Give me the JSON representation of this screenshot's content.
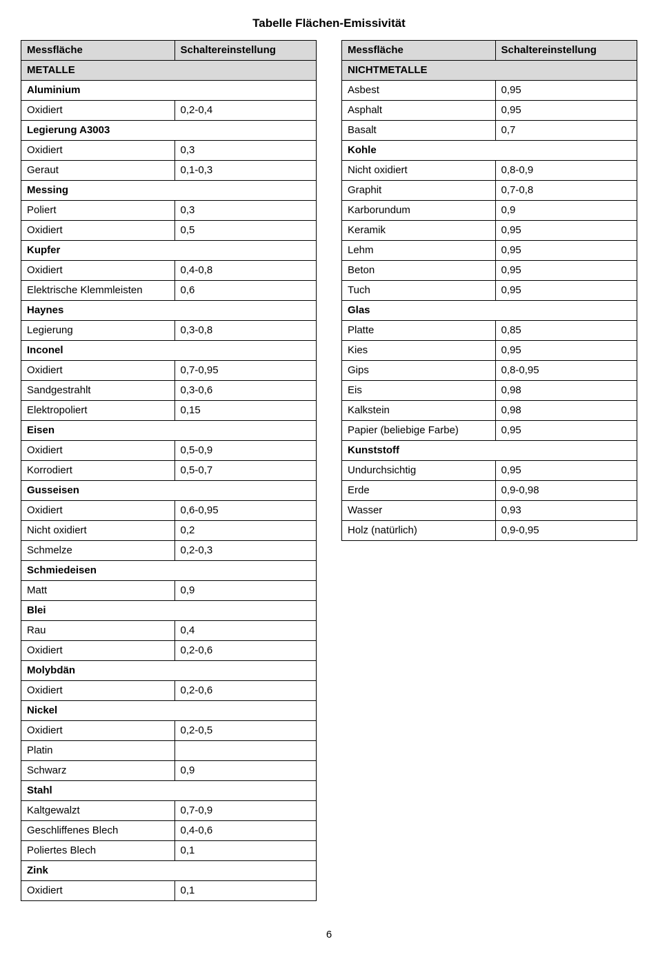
{
  "title": "Tabelle Flächen-Emissivität",
  "page_number": "6",
  "headers": {
    "surface": "Messfläche",
    "setting": "Schaltereinstellung"
  },
  "left_rows": [
    {
      "type": "section_gray",
      "label": "METALLE"
    },
    {
      "type": "section",
      "label": "Aluminium"
    },
    {
      "type": "data",
      "surface": "Oxidiert",
      "setting": "0,2-0,4"
    },
    {
      "type": "section",
      "label": "Legierung A3003"
    },
    {
      "type": "data",
      "surface": "Oxidiert",
      "setting": "0,3"
    },
    {
      "type": "data",
      "surface": "Geraut",
      "setting": "0,1-0,3"
    },
    {
      "type": "section",
      "label": "Messing"
    },
    {
      "type": "data",
      "surface": "Poliert",
      "setting": "0,3"
    },
    {
      "type": "data",
      "surface": "Oxidiert",
      "setting": "0,5"
    },
    {
      "type": "section",
      "label": "Kupfer"
    },
    {
      "type": "data",
      "surface": "Oxidiert",
      "setting": "0,4-0,8"
    },
    {
      "type": "data",
      "surface": "Elektrische Klemmleisten",
      "setting": "0,6"
    },
    {
      "type": "section",
      "label": "Haynes"
    },
    {
      "type": "data",
      "surface": "Legierung",
      "setting": "0,3-0,8"
    },
    {
      "type": "section",
      "label": "Inconel"
    },
    {
      "type": "data",
      "surface": "Oxidiert",
      "setting": "0,7-0,95"
    },
    {
      "type": "data",
      "surface": "Sandgestrahlt",
      "setting": "0,3-0,6"
    },
    {
      "type": "data",
      "surface": "Elektropoliert",
      "setting": "0,15"
    },
    {
      "type": "section",
      "label": "Eisen"
    },
    {
      "type": "data",
      "surface": "Oxidiert",
      "setting": "0,5-0,9"
    },
    {
      "type": "data",
      "surface": "Korrodiert",
      "setting": "0,5-0,7"
    },
    {
      "type": "section",
      "label": "Gusseisen"
    },
    {
      "type": "data",
      "surface": "Oxidiert",
      "setting": "0,6-0,95"
    },
    {
      "type": "data",
      "surface": "Nicht oxidiert",
      "setting": "0,2"
    },
    {
      "type": "data",
      "surface": "Schmelze",
      "setting": "0,2-0,3"
    },
    {
      "type": "section",
      "label": "Schmiedeisen"
    },
    {
      "type": "data",
      "surface": "Matt",
      "setting": "0,9"
    },
    {
      "type": "section",
      "label": "Blei"
    },
    {
      "type": "data",
      "surface": "Rau",
      "setting": "0,4"
    },
    {
      "type": "data",
      "surface": "Oxidiert",
      "setting": "0,2-0,6"
    },
    {
      "type": "section",
      "label": "Molybdän"
    },
    {
      "type": "data",
      "surface": "Oxidiert",
      "setting": "0,2-0,6"
    },
    {
      "type": "section",
      "label": "Nickel"
    },
    {
      "type": "data",
      "surface": "Oxidiert",
      "setting": "0,2-0,5"
    },
    {
      "type": "data",
      "surface": "Platin",
      "setting": ""
    },
    {
      "type": "data",
      "surface": "Schwarz",
      "setting": "0,9"
    },
    {
      "type": "section",
      "label": "Stahl"
    },
    {
      "type": "data",
      "surface": "Kaltgewalzt",
      "setting": "0,7-0,9"
    },
    {
      "type": "data",
      "surface": "Geschliffenes Blech",
      "setting": "0,4-0,6"
    },
    {
      "type": "data",
      "surface": "Poliertes Blech",
      "setting": "0,1"
    },
    {
      "type": "section",
      "label": "Zink"
    },
    {
      "type": "data",
      "surface": "Oxidiert",
      "setting": "0,1"
    }
  ],
  "right_rows": [
    {
      "type": "section_gray",
      "label": "NICHTMETALLE"
    },
    {
      "type": "data",
      "surface": "Asbest",
      "setting": "0,95"
    },
    {
      "type": "data",
      "surface": "Asphalt",
      "setting": "0,95"
    },
    {
      "type": "data",
      "surface": "Basalt",
      "setting": "0,7"
    },
    {
      "type": "section",
      "label": "Kohle"
    },
    {
      "type": "data",
      "surface": "Nicht oxidiert",
      "setting": "0,8-0,9"
    },
    {
      "type": "data",
      "surface": "Graphit",
      "setting": "0,7-0,8"
    },
    {
      "type": "data",
      "surface": "Karborundum",
      "setting": "0,9"
    },
    {
      "type": "data",
      "surface": "Keramik",
      "setting": "0,95"
    },
    {
      "type": "data",
      "surface": "Lehm",
      "setting": "0,95"
    },
    {
      "type": "data",
      "surface": "Beton",
      "setting": "0,95"
    },
    {
      "type": "data",
      "surface": "Tuch",
      "setting": "0,95"
    },
    {
      "type": "section",
      "label": "Glas"
    },
    {
      "type": "data",
      "surface": "Platte",
      "setting": "0,85"
    },
    {
      "type": "data",
      "surface": "Kies",
      "setting": "0,95"
    },
    {
      "type": "data",
      "surface": "Gips",
      "setting": "0,8-0,95"
    },
    {
      "type": "data",
      "surface": "Eis",
      "setting": "0,98"
    },
    {
      "type": "data",
      "surface": "Kalkstein",
      "setting": "0,98"
    },
    {
      "type": "data",
      "surface": "Papier (beliebige Farbe)",
      "setting": "0,95"
    },
    {
      "type": "section",
      "label": "Kunststoff"
    },
    {
      "type": "data",
      "surface": "Undurchsichtig",
      "setting": "0,95"
    },
    {
      "type": "data",
      "surface": "Erde",
      "setting": "0,9-0,98"
    },
    {
      "type": "data",
      "surface": "Wasser",
      "setting": "0,93"
    },
    {
      "type": "data",
      "surface": "Holz (natürlich)",
      "setting": "0,9-0,95"
    }
  ]
}
